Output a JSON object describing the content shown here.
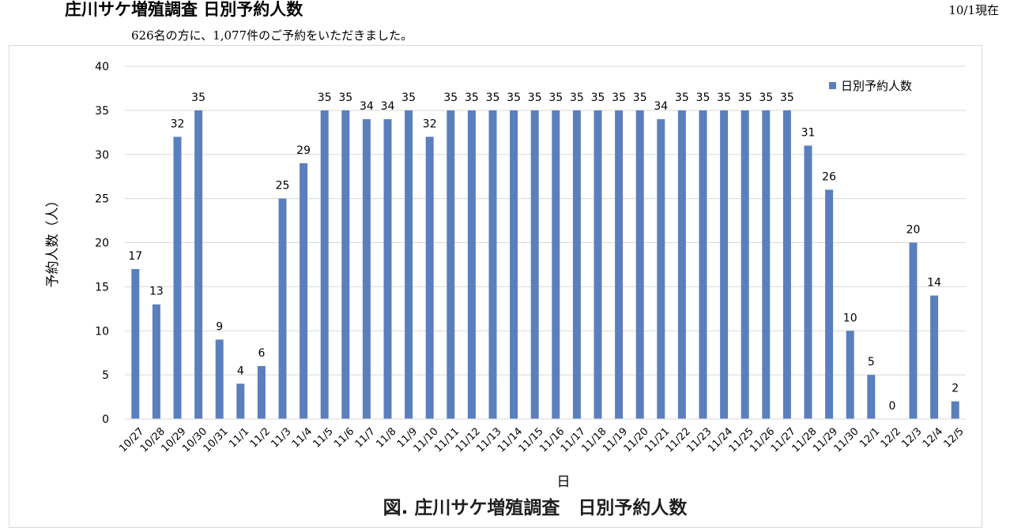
{
  "header": {
    "title": "庄川サケ増殖調査 日別予約人数",
    "as_of": "10/1現在",
    "summary": "626名の方に、1,077件のご予約をいただきました。"
  },
  "chart_data": {
    "type": "bar",
    "categories": [
      "10/27",
      "10/28",
      "10/29",
      "10/30",
      "10/31",
      "11/1",
      "11/2",
      "11/3",
      "11/4",
      "11/5",
      "11/6",
      "11/7",
      "11/8",
      "11/9",
      "11/10",
      "11/11",
      "11/12",
      "11/13",
      "11/14",
      "11/15",
      "11/16",
      "11/17",
      "11/18",
      "11/19",
      "11/20",
      "11/21",
      "11/22",
      "11/23",
      "11/24",
      "11/25",
      "11/26",
      "11/27",
      "11/28",
      "11/29",
      "11/30",
      "12/1",
      "12/2",
      "12/3",
      "12/4",
      "12/5"
    ],
    "series": [
      {
        "name": "日別予約人数",
        "values": [
          17,
          13,
          32,
          35,
          9,
          4,
          6,
          25,
          29,
          35,
          35,
          34,
          34,
          35,
          32,
          35,
          35,
          35,
          35,
          35,
          35,
          35,
          35,
          35,
          35,
          34,
          35,
          35,
          35,
          35,
          35,
          35,
          31,
          26,
          10,
          5,
          0,
          20,
          14,
          2
        ]
      }
    ],
    "title": "図. 庄川サケ増殖調査　日別予約人数",
    "xlabel": "日",
    "ylabel": "予約人数（人）",
    "ylim": [
      0,
      40
    ],
    "yticks": [
      0,
      5,
      10,
      15,
      20,
      25,
      30,
      35,
      40
    ],
    "grid": true,
    "legend_position": "top-right",
    "bar_color": "#5b7fbd",
    "grid_color": "#d9d9d9"
  }
}
